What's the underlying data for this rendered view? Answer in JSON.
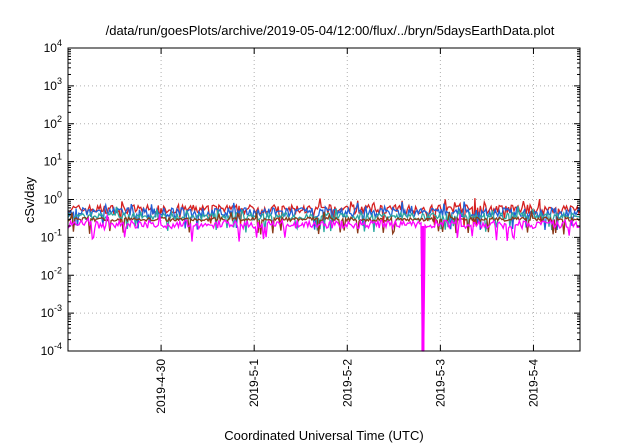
{
  "chart_data": {
    "type": "line",
    "title": "/data/run/goesPlots/archive/2019-05-04/12:00/flux/../bryn/5daysEarthData.plot",
    "xlabel": "Coordinated Universal Time (UTC)",
    "ylabel": "cSv/day",
    "yscale": "log",
    "ylim": [
      0.0001,
      10000
    ],
    "y_ticks": [
      {
        "base": "10",
        "exp": "-4",
        "value": 0.0001
      },
      {
        "base": "10",
        "exp": "-3",
        "value": 0.001
      },
      {
        "base": "10",
        "exp": "-2",
        "value": 0.01
      },
      {
        "base": "10",
        "exp": "-1",
        "value": 0.1
      },
      {
        "base": "10",
        "exp": "0",
        "value": 1
      },
      {
        "base": "10",
        "exp": "1",
        "value": 10
      },
      {
        "base": "10",
        "exp": "2",
        "value": 100
      },
      {
        "base": "10",
        "exp": "3",
        "value": 1000
      },
      {
        "base": "10",
        "exp": "4",
        "value": 10000
      }
    ],
    "xlim": [
      "2019-04-29",
      "2019-05-04T12:00"
    ],
    "x_ticks": [
      "2019-4-30",
      "2019-5-1",
      "2019-5-2",
      "2019-5-3",
      "2019-5-4"
    ],
    "grid": true,
    "series": [
      {
        "color": "#d62020",
        "level": 0.55,
        "spread": 0.28
      },
      {
        "color": "#1f5fd6",
        "level": 0.45,
        "spread": 0.3
      },
      {
        "color": "#2aa7a0",
        "level": 0.36,
        "spread": 0.22
      },
      {
        "color": "#8a3a1a",
        "level": 0.3,
        "spread": 0.12
      },
      {
        "color": "#ff00ff",
        "level": 0.22,
        "spread": 0.25
      }
    ],
    "annotations": [
      {
        "series_color": "#ff00ff",
        "x": "2019-05-02T19:30",
        "y": 0.0001,
        "note": "dropout"
      }
    ]
  }
}
